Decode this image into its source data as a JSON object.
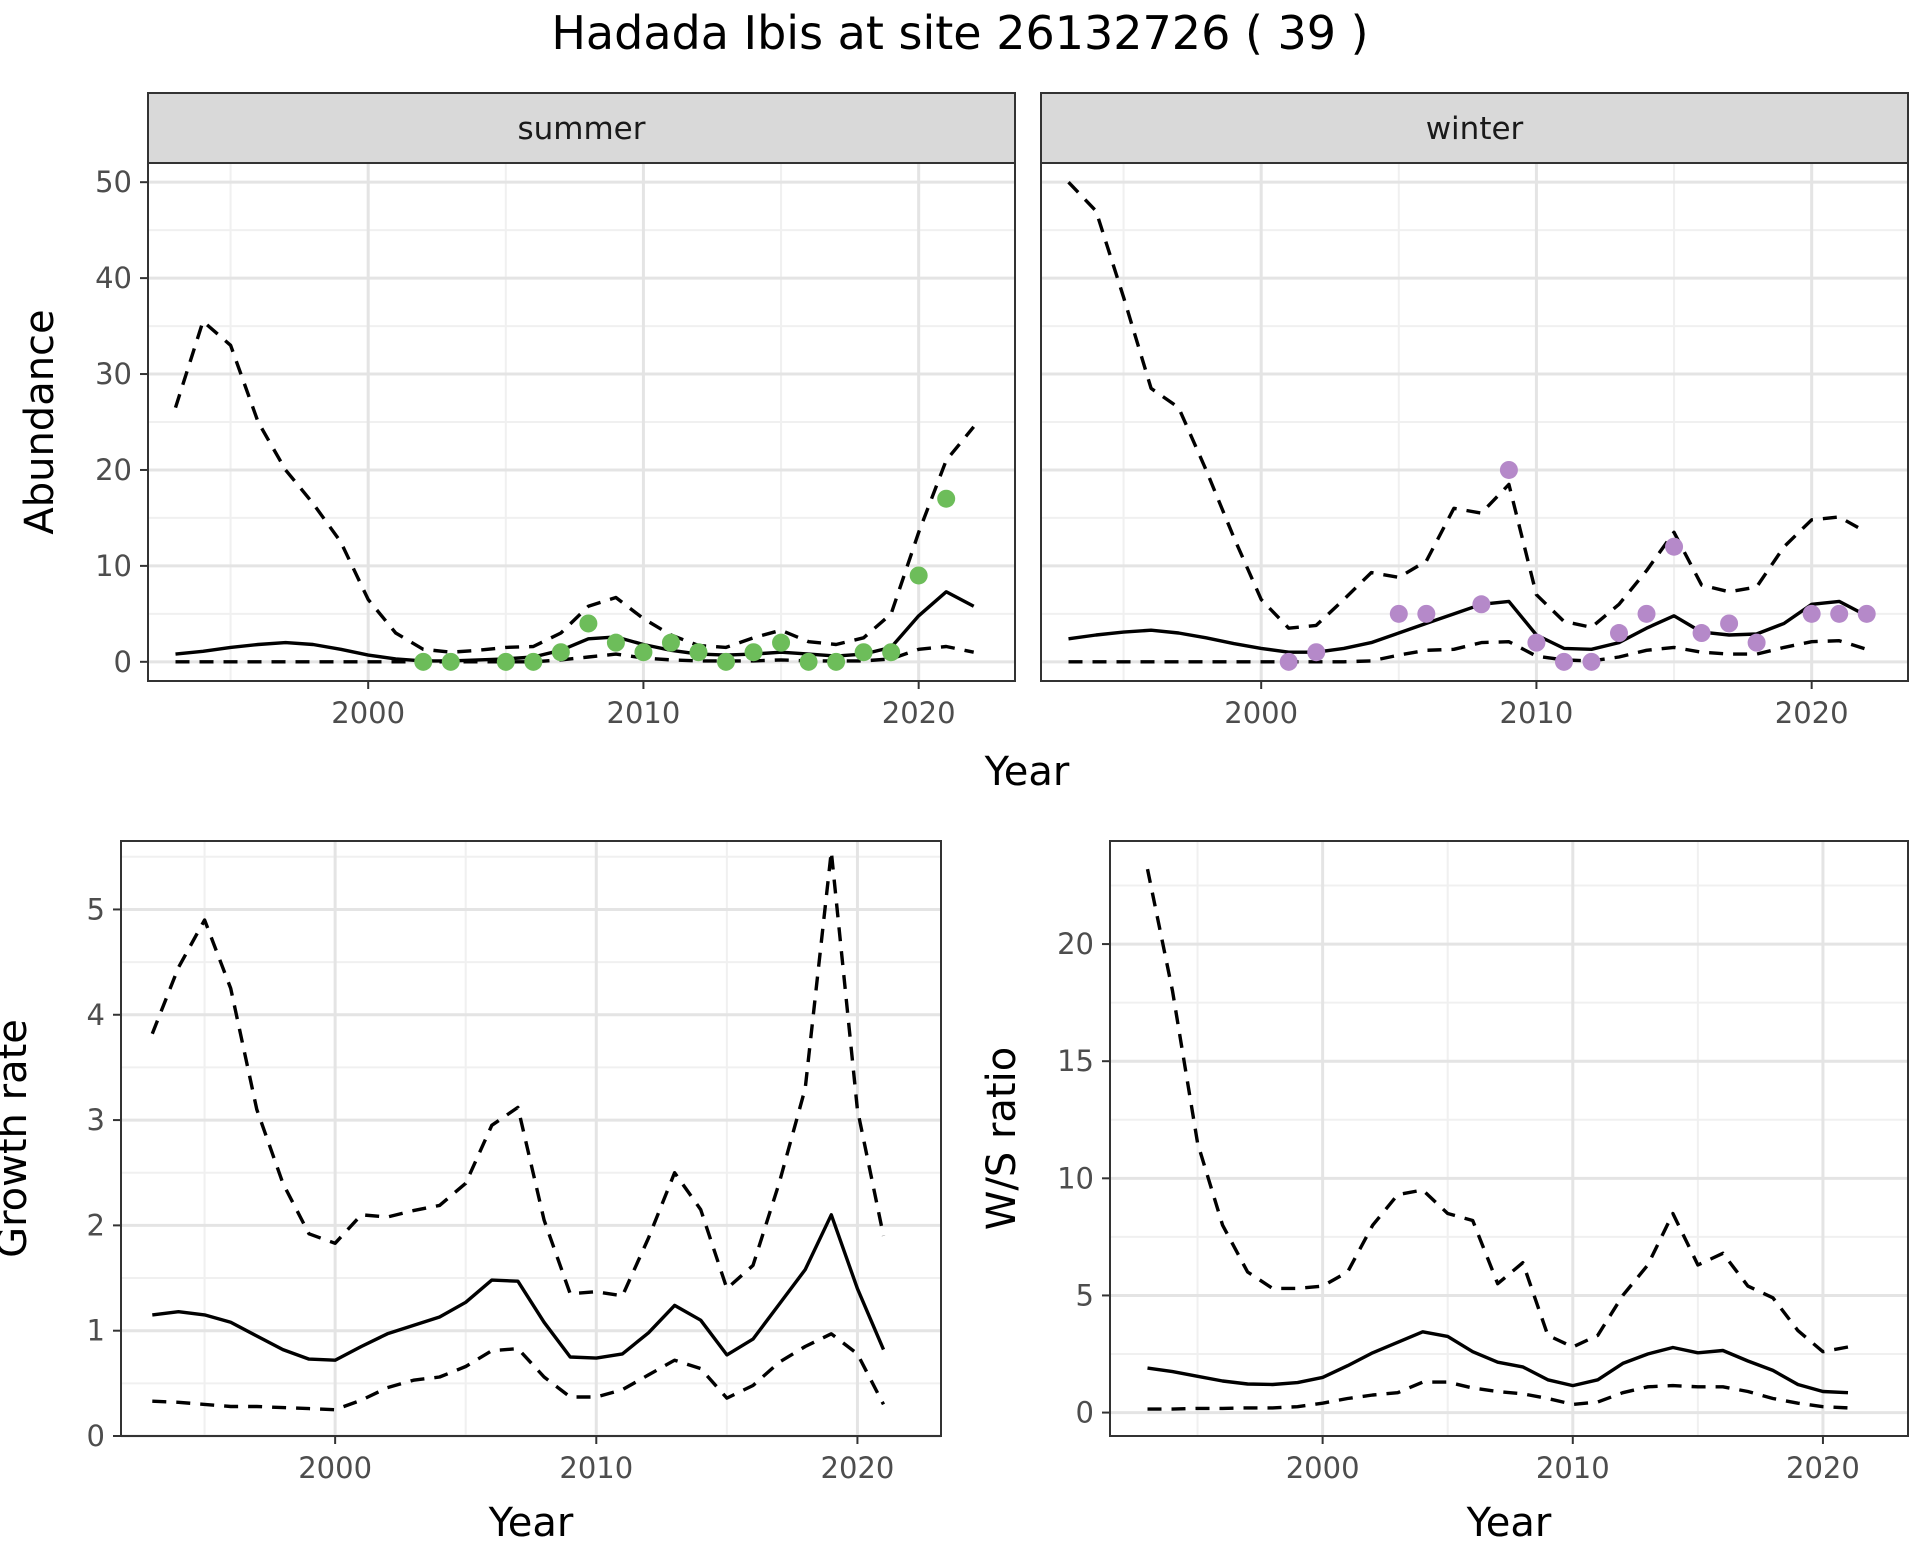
{
  "title": "Hadada Ibis at site 26132726 ( 39 )",
  "colors": {
    "summer_points": "#6dbd5a",
    "winter_points": "#b589c9",
    "strip_bg": "#d9d9d9"
  },
  "chart_data": [
    {
      "type": "line",
      "panel": "summer",
      "strip_label": "summer",
      "xlabel": "Year",
      "ylabel": "Abundance",
      "xlim": [
        1992,
        2023.5
      ],
      "ylim": [
        -2,
        52
      ],
      "xticks": [
        2000,
        2010,
        2020
      ],
      "yticks": [
        0,
        10,
        20,
        30,
        40,
        50
      ],
      "grid": true,
      "x": [
        1993,
        1994,
        1995,
        1996,
        1997,
        1998,
        1999,
        2000,
        2001,
        2002,
        2003,
        2004,
        2005,
        2006,
        2007,
        2008,
        2009,
        2010,
        2011,
        2012,
        2013,
        2014,
        2015,
        2016,
        2017,
        2018,
        2019,
        2020,
        2021,
        2022
      ],
      "series": [
        {
          "role": "estimate",
          "style": "solid",
          "values": [
            0.8,
            1.1,
            1.5,
            1.8,
            2.0,
            1.8,
            1.3,
            0.7,
            0.3,
            0.1,
            0.1,
            0.2,
            0.3,
            0.5,
            1.2,
            2.4,
            2.6,
            1.8,
            1.2,
            0.8,
            0.7,
            0.8,
            1.0,
            0.8,
            0.6,
            0.8,
            1.5,
            4.8,
            7.3,
            5.8
          ]
        },
        {
          "role": "upper",
          "style": "dashed",
          "values": [
            26.5,
            35.5,
            33,
            25,
            20,
            16.5,
            12.5,
            6.5,
            3.0,
            1.3,
            1.0,
            1.2,
            1.5,
            1.6,
            3.0,
            5.8,
            6.7,
            4.5,
            2.8,
            1.7,
            1.5,
            2.5,
            3.3,
            2.1,
            1.8,
            2.5,
            5.0,
            13.5,
            21,
            24.5
          ]
        },
        {
          "role": "lower",
          "style": "dashed",
          "values": [
            0,
            0,
            0,
            0,
            0,
            0,
            0,
            0,
            0,
            0,
            0,
            0,
            0,
            0,
            0.2,
            0.5,
            0.8,
            0.4,
            0.2,
            0.1,
            0.1,
            0.1,
            0.2,
            0.1,
            0.1,
            0.1,
            0.3,
            1.3,
            1.6,
            1.0
          ]
        }
      ],
      "points": {
        "x": [
          2002,
          2003,
          2005,
          2006,
          2007,
          2008,
          2009,
          2010,
          2011,
          2012,
          2013,
          2014,
          2015,
          2016,
          2017,
          2018,
          2019,
          2020,
          2021
        ],
        "y": [
          0,
          0,
          0,
          0,
          1,
          4,
          2,
          1,
          2,
          1,
          0,
          1,
          2,
          0,
          0,
          1,
          1,
          9,
          17
        ]
      }
    },
    {
      "type": "line",
      "panel": "winter",
      "strip_label": "winter",
      "xlabel": "Year",
      "ylabel": "Abundance",
      "xlim": [
        1992,
        2023.5
      ],
      "ylim": [
        -2,
        52
      ],
      "xticks": [
        2000,
        2010,
        2020
      ],
      "yticks": [
        0,
        10,
        20,
        30,
        40,
        50
      ],
      "grid": true,
      "x": [
        1993,
        1994,
        1995,
        1996,
        1997,
        1998,
        1999,
        2000,
        2001,
        2002,
        2003,
        2004,
        2005,
        2006,
        2007,
        2008,
        2009,
        2010,
        2011,
        2012,
        2013,
        2014,
        2015,
        2016,
        2017,
        2018,
        2019,
        2020,
        2021,
        2022
      ],
      "series": [
        {
          "role": "estimate",
          "style": "solid",
          "values": [
            2.4,
            2.8,
            3.1,
            3.3,
            3.0,
            2.5,
            1.9,
            1.4,
            1.0,
            1.0,
            1.4,
            2.0,
            3.0,
            4.0,
            5.0,
            6.0,
            6.3,
            2.8,
            1.4,
            1.3,
            2.0,
            3.5,
            4.8,
            3.1,
            2.8,
            2.9,
            4.0,
            6.0,
            6.3,
            4.8
          ]
        },
        {
          "role": "upper",
          "style": "dashed",
          "values": [
            50,
            47,
            38,
            28.5,
            26.5,
            20,
            13,
            6.5,
            3.5,
            3.8,
            6.5,
            9.3,
            8.8,
            10.5,
            16,
            15.5,
            18.5,
            7.0,
            4.2,
            3.6,
            6.0,
            9.5,
            13.5,
            8,
            7.3,
            7.8,
            12,
            14.8,
            15.1,
            13.5
          ]
        },
        {
          "role": "lower",
          "style": "dashed",
          "values": [
            0,
            0,
            0,
            0,
            0,
            0,
            0,
            0,
            0,
            0,
            0,
            0.1,
            0.7,
            1.2,
            1.3,
            2.0,
            2.1,
            0.6,
            0.2,
            0.1,
            0.5,
            1.2,
            1.5,
            1.0,
            0.8,
            0.8,
            1.5,
            2.1,
            2.2,
            1.3
          ]
        }
      ],
      "points": {
        "x": [
          2001,
          2002,
          2005,
          2006,
          2008,
          2009,
          2010,
          2011,
          2012,
          2013,
          2014,
          2015,
          2016,
          2017,
          2018,
          2020,
          2021,
          2022
        ],
        "y": [
          0,
          1,
          5,
          5,
          6,
          20,
          2,
          0,
          0,
          3,
          5,
          12,
          3,
          4,
          2,
          5,
          5,
          5
        ]
      }
    },
    {
      "type": "line",
      "panel": "growth",
      "xlabel": "Year",
      "ylabel": "Growth rate",
      "xlim": [
        1991.8,
        2023.2
      ],
      "ylim": [
        0,
        5.65
      ],
      "xticks": [
        2000,
        2010,
        2020
      ],
      "yticks": [
        0,
        1,
        2,
        3,
        4,
        5
      ],
      "grid": true,
      "x": [
        1993,
        1994,
        1995,
        1996,
        1997,
        1998,
        1999,
        2000,
        2001,
        2002,
        2003,
        2004,
        2005,
        2006,
        2007,
        2008,
        2009,
        2010,
        2011,
        2012,
        2013,
        2014,
        2015,
        2016,
        2017,
        2018,
        2019,
        2020,
        2021
      ],
      "series": [
        {
          "role": "estimate",
          "style": "solid",
          "values": [
            1.15,
            1.18,
            1.15,
            1.08,
            0.95,
            0.82,
            0.73,
            0.72,
            0.85,
            0.97,
            1.05,
            1.13,
            1.27,
            1.48,
            1.47,
            1.08,
            0.75,
            0.74,
            0.78,
            0.98,
            1.24,
            1.1,
            0.77,
            0.92,
            1.25,
            1.58,
            2.1,
            1.4,
            0.82
          ]
        },
        {
          "role": "upper",
          "style": "dashed",
          "values": [
            3.82,
            4.45,
            4.9,
            4.25,
            3.1,
            2.4,
            1.92,
            1.83,
            2.1,
            2.08,
            2.14,
            2.19,
            2.4,
            2.95,
            3.12,
            2.05,
            1.35,
            1.37,
            1.33,
            1.88,
            2.5,
            2.15,
            1.4,
            1.62,
            2.4,
            3.3,
            5.55,
            3.1,
            1.9
          ]
        },
        {
          "role": "lower",
          "style": "dashed",
          "values": [
            0.33,
            0.32,
            0.3,
            0.28,
            0.28,
            0.27,
            0.26,
            0.25,
            0.34,
            0.46,
            0.53,
            0.56,
            0.66,
            0.81,
            0.83,
            0.56,
            0.37,
            0.37,
            0.44,
            0.58,
            0.72,
            0.64,
            0.36,
            0.48,
            0.7,
            0.85,
            0.97,
            0.78,
            0.3
          ]
        }
      ]
    },
    {
      "type": "line",
      "panel": "ratio",
      "xlabel": "Year",
      "ylabel": "W/S ratio",
      "xlim": [
        1991.5,
        2023.4
      ],
      "ylim": [
        -1.0,
        24.4
      ],
      "xticks": [
        2000,
        2010,
        2020
      ],
      "yticks": [
        0,
        5,
        10,
        15,
        20
      ],
      "grid": true,
      "x": [
        1993,
        1994,
        1995,
        1996,
        1997,
        1998,
        1999,
        2000,
        2001,
        2002,
        2003,
        2004,
        2005,
        2006,
        2007,
        2008,
        2009,
        2010,
        2011,
        2012,
        2013,
        2014,
        2015,
        2016,
        2017,
        2018,
        2019,
        2020,
        2021
      ],
      "series": [
        {
          "role": "estimate",
          "style": "solid",
          "values": [
            1.9,
            1.75,
            1.55,
            1.35,
            1.22,
            1.2,
            1.28,
            1.5,
            2.0,
            2.55,
            3.0,
            3.45,
            3.25,
            2.6,
            2.15,
            1.95,
            1.4,
            1.15,
            1.4,
            2.1,
            2.5,
            2.78,
            2.55,
            2.65,
            2.2,
            1.8,
            1.2,
            0.9,
            0.85
          ]
        },
        {
          "role": "upper",
          "style": "dashed",
          "values": [
            23.2,
            18.0,
            11.5,
            8.0,
            6.0,
            5.3,
            5.3,
            5.4,
            6.0,
            8.0,
            9.3,
            9.5,
            8.5,
            8.2,
            5.5,
            6.4,
            3.3,
            2.8,
            3.3,
            5.0,
            6.3,
            8.5,
            6.3,
            6.8,
            5.4,
            4.9,
            3.5,
            2.6,
            2.8
          ]
        },
        {
          "role": "lower",
          "style": "dashed",
          "values": [
            0.15,
            0.15,
            0.18,
            0.18,
            0.2,
            0.2,
            0.25,
            0.4,
            0.6,
            0.75,
            0.85,
            1.3,
            1.3,
            1.05,
            0.9,
            0.8,
            0.6,
            0.35,
            0.45,
            0.85,
            1.1,
            1.15,
            1.1,
            1.1,
            0.9,
            0.6,
            0.4,
            0.25,
            0.2
          ]
        }
      ]
    }
  ]
}
